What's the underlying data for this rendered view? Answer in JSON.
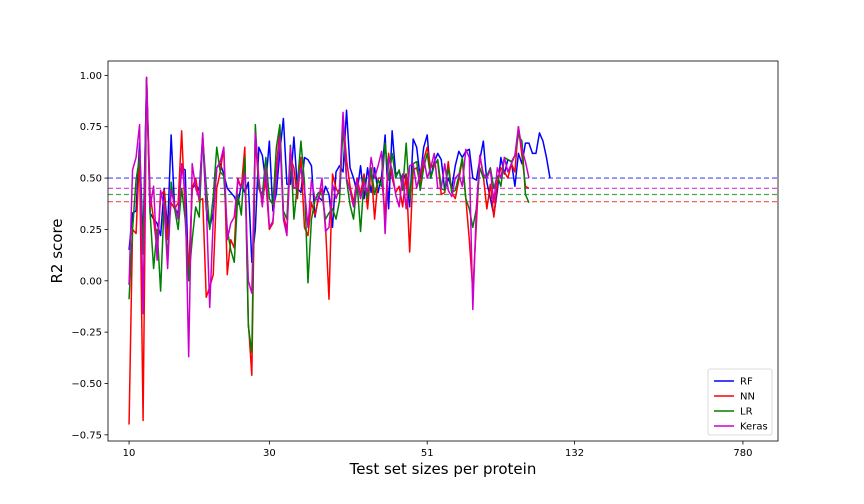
{
  "chart_data": {
    "type": "line",
    "title": "",
    "xlabel": "Test set sizes per protein",
    "ylabel": "R2 score",
    "ylim": [
      -0.78,
      1.07
    ],
    "xlim": [
      -6,
      185
    ],
    "x_ticks": [
      {
        "pos": 0,
        "label": "10"
      },
      {
        "pos": 40,
        "label": "30"
      },
      {
        "pos": 85,
        "label": "51"
      },
      {
        "pos": 127,
        "label": "132"
      },
      {
        "pos": 175,
        "label": "780"
      }
    ],
    "y_ticks": [
      -0.75,
      -0.5,
      -0.25,
      0.0,
      0.25,
      0.5,
      0.75,
      1.0
    ],
    "y_tick_labels": [
      "−0.75",
      "−0.50",
      "−0.25",
      "0.00",
      "0.25",
      "0.50",
      "0.75",
      "1.00"
    ],
    "legend_position": "lower-right",
    "grid": false,
    "series": [
      {
        "name": "RF",
        "color": "#0000ff",
        "mean": 0.5,
        "values": [
          0.15,
          0.33,
          0.34,
          0.67,
          0.18,
          0.98,
          0.33,
          0.3,
          0.28,
          0.22,
          0.45,
          0.25,
          0.71,
          0.35,
          0.33,
          0.55,
          0.54,
          0.0,
          0.45,
          0.47,
          0.44,
          0.7,
          0.35,
          0.26,
          0.33,
          0.55,
          0.57,
          0.52,
          0.45,
          0.43,
          0.41,
          0.37,
          0.47,
          0.43,
          0.48,
          0.09,
          0.25,
          0.65,
          0.61,
          0.48,
          0.68,
          0.34,
          0.43,
          0.63,
          0.79,
          0.47,
          0.47,
          0.7,
          0.45,
          0.43,
          0.6,
          0.59,
          0.56,
          0.31,
          0.41,
          0.39,
          0.46,
          0.42,
          0.26,
          0.53,
          0.56,
          0.53,
          0.83,
          0.55,
          0.5,
          0.43,
          0.56,
          0.4,
          0.55,
          0.43,
          0.55,
          0.43,
          0.51,
          0.71,
          0.35,
          0.73,
          0.52,
          0.53,
          0.49,
          0.52,
          0.36,
          0.69,
          0.65,
          0.5,
          0.65,
          0.71,
          0.5,
          0.58,
          0.62,
          0.59,
          0.44,
          0.5,
          0.45,
          0.56,
          0.63,
          0.6,
          0.63,
          0.64,
          0.5,
          0.49,
          0.59,
          0.68,
          0.48,
          0.4,
          0.32,
          0.44,
          0.6,
          0.52,
          0.59,
          0.58,
          0.46,
          0.62,
          0.57,
          0.67,
          0.67,
          0.62,
          0.62,
          0.72,
          0.68,
          0.6,
          0.5
        ]
      },
      {
        "name": "NN",
        "color": "#ff0000",
        "mean": 0.385,
        "values": [
          -0.7,
          0.25,
          0.23,
          0.62,
          -0.68,
          0.99,
          0.42,
          0.3,
          0.15,
          0.41,
          0.44,
          0.2,
          0.38,
          0.35,
          0.38,
          0.73,
          0.33,
          0.03,
          0.45,
          0.5,
          0.39,
          0.4,
          -0.08,
          -0.03,
          0.03,
          0.45,
          0.53,
          0.65,
          0.03,
          0.2,
          0.16,
          0.5,
          0.45,
          0.65,
          -0.2,
          -0.46,
          0.7,
          0.45,
          0.4,
          0.48,
          0.25,
          0.28,
          0.55,
          0.74,
          0.32,
          0.25,
          0.6,
          0.55,
          0.4,
          0.6,
          0.26,
          0.22,
          0.38,
          0.32,
          0.4,
          0.45,
          0.27,
          -0.09,
          0.52,
          0.45,
          0.42,
          0.8,
          0.59,
          0.46,
          0.38,
          0.5,
          0.42,
          0.52,
          0.35,
          0.55,
          0.3,
          0.5,
          0.5,
          0.32,
          0.62,
          0.5,
          0.43,
          0.46,
          0.36,
          0.52,
          0.14,
          0.54,
          0.55,
          0.47,
          0.59,
          0.65,
          0.55,
          0.57,
          0.58,
          0.42,
          0.43,
          0.58,
          0.43,
          0.4,
          0.49,
          0.59,
          0.4,
          0.2,
          -0.05,
          0.27,
          0.61,
          0.51,
          0.35,
          0.47,
          0.31,
          0.48,
          0.55,
          0.53,
          0.5,
          0.57,
          0.53,
          0.75,
          0.61,
          0.46,
          0.45
        ]
      },
      {
        "name": "LR",
        "color": "#008000",
        "mean": 0.42,
        "values": [
          -0.09,
          0.25,
          0.49,
          0.6,
          0.13,
          0.98,
          0.33,
          0.06,
          0.25,
          -0.05,
          0.38,
          0.1,
          0.48,
          0.35,
          0.25,
          0.45,
          0.3,
          0.0,
          0.2,
          0.36,
          0.31,
          0.7,
          0.46,
          0.25,
          0.41,
          0.65,
          0.53,
          0.51,
          0.25,
          0.15,
          0.09,
          0.42,
          0.32,
          0.6,
          -0.22,
          -0.35,
          0.76,
          0.45,
          0.42,
          0.6,
          0.4,
          0.37,
          0.65,
          0.76,
          0.34,
          0.3,
          0.66,
          0.3,
          0.47,
          0.68,
          0.48,
          -0.01,
          0.3,
          0.39,
          0.43,
          0.42,
          0.3,
          0.33,
          0.35,
          0.3,
          0.39,
          0.75,
          0.49,
          0.37,
          0.3,
          0.48,
          0.24,
          0.5,
          0.4,
          0.55,
          0.42,
          0.49,
          0.46,
          0.67,
          0.49,
          0.62,
          0.5,
          0.54,
          0.44,
          0.67,
          0.4,
          0.57,
          0.58,
          0.44,
          0.55,
          0.62,
          0.5,
          0.56,
          0.59,
          0.45,
          0.44,
          0.55,
          0.43,
          0.44,
          0.51,
          0.6,
          0.4,
          0.35,
          0.26,
          0.35,
          0.55,
          0.5,
          0.51,
          0.55,
          0.45,
          0.51,
          0.46,
          0.6,
          0.59,
          0.58,
          0.61,
          0.71,
          0.68,
          0.42,
          0.38
        ]
      },
      {
        "name": "Keras",
        "color": "#cc00cc",
        "mean": 0.45,
        "values": [
          -0.02,
          0.54,
          0.6,
          0.76,
          -0.16,
          0.99,
          0.36,
          0.46,
          0.1,
          0.44,
          0.36,
          0.06,
          0.44,
          0.37,
          0.3,
          0.57,
          0.43,
          -0.37,
          0.57,
          0.45,
          0.4,
          0.72,
          0.38,
          -0.13,
          0.3,
          0.55,
          0.58,
          0.65,
          0.2,
          0.28,
          0.31,
          0.49,
          0.45,
          0.52,
          0.0,
          -0.06,
          0.72,
          0.5,
          0.36,
          0.55,
          0.26,
          0.29,
          0.5,
          0.7,
          0.3,
          0.22,
          0.65,
          0.45,
          0.46,
          0.55,
          0.45,
          0.26,
          0.49,
          0.4,
          0.39,
          0.5,
          0.24,
          0.26,
          0.47,
          0.4,
          0.45,
          0.82,
          0.5,
          0.44,
          0.36,
          0.49,
          0.4,
          0.48,
          0.43,
          0.6,
          0.5,
          0.56,
          0.63,
          0.23,
          0.6,
          0.54,
          0.42,
          0.36,
          0.52,
          0.35,
          0.56,
          0.57,
          0.45,
          0.53,
          0.6,
          0.5,
          0.55,
          0.62,
          0.45,
          0.45,
          0.57,
          0.44,
          0.41,
          0.5,
          0.52,
          0.46,
          0.64,
          0.6,
          -0.14,
          0.35,
          0.61,
          0.52,
          0.5,
          0.54,
          0.38,
          0.55,
          0.5,
          0.6,
          0.53,
          0.57,
          0.61,
          0.75,
          0.64,
          0.58,
          0.5
        ]
      }
    ]
  }
}
